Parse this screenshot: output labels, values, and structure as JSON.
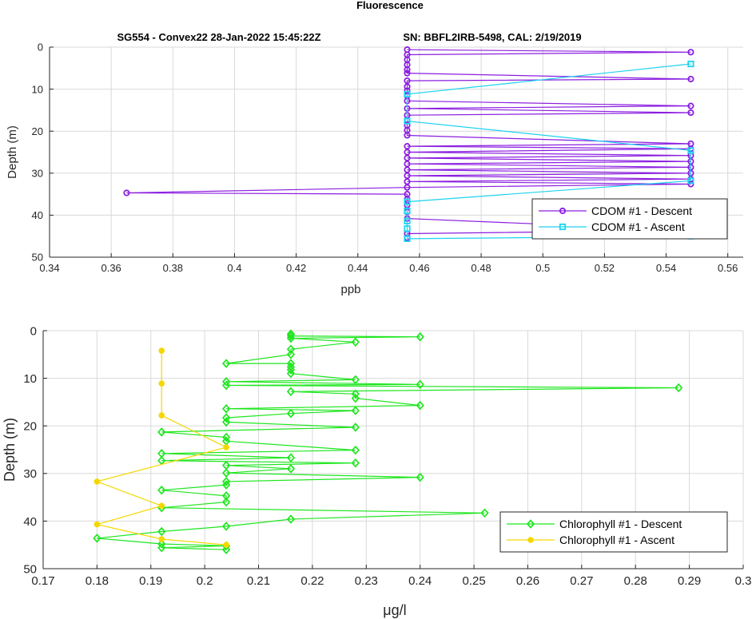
{
  "figure": {
    "title": "Fluorescence",
    "subtitle_left": "SG554 - Convex22 28-Jan-2022 15:45:22Z",
    "subtitle_right": "SN: BBFL2IRB-5498, CAL: 2/19/2019"
  },
  "colors": {
    "cdom_descent": "#8b1ee0",
    "cdom_ascent": "#1ed2f0",
    "chl_descent": "#1ee61e",
    "chl_ascent": "#f5d700",
    "axis": "#262626",
    "grid": "#d9d9d9"
  },
  "chart_data": [
    {
      "type": "line",
      "xlabel": "ppb",
      "ylabel": "Depth (m)",
      "xlim": [
        0.34,
        0.565
      ],
      "ylim": [
        0,
        50
      ],
      "y_reversed": true,
      "grid": true,
      "legend_position": "bottom-right",
      "xticks": [
        "0.34",
        "0.36",
        "0.38",
        "0.4",
        "0.42",
        "0.44",
        "0.46",
        "0.48",
        "0.5",
        "0.52",
        "0.54",
        "0.56"
      ],
      "yticks": [
        "0",
        "10",
        "20",
        "30",
        "40",
        "50"
      ],
      "series": [
        {
          "name": "CDOM #1 - Descent",
          "marker": "circle",
          "points": [
            [
              0.456,
              0.6
            ],
            [
              0.548,
              1.2
            ],
            [
              0.456,
              1.8
            ],
            [
              0.456,
              3.0
            ],
            [
              0.456,
              4.2
            ],
            [
              0.456,
              5.4
            ],
            [
              0.456,
              6.2
            ],
            [
              0.548,
              7.6
            ],
            [
              0.456,
              8.0
            ],
            [
              0.456,
              9.4
            ],
            [
              0.456,
              10.4
            ],
            [
              0.456,
              11.6
            ],
            [
              0.456,
              12.8
            ],
            [
              0.548,
              14.0
            ],
            [
              0.456,
              14.6
            ],
            [
              0.548,
              15.6
            ],
            [
              0.456,
              16.2
            ],
            [
              0.456,
              17.4
            ],
            [
              0.456,
              18.6
            ],
            [
              0.456,
              19.8
            ],
            [
              0.456,
              21.0
            ],
            [
              0.548,
              23.0
            ],
            [
              0.456,
              23.6
            ],
            [
              0.548,
              24.2
            ],
            [
              0.456,
              25.0
            ],
            [
              0.548,
              25.8
            ],
            [
              0.456,
              26.4
            ],
            [
              0.548,
              27.2
            ],
            [
              0.456,
              27.8
            ],
            [
              0.548,
              28.6
            ],
            [
              0.456,
              29.2
            ],
            [
              0.548,
              30.0
            ],
            [
              0.456,
              30.6
            ],
            [
              0.548,
              31.4
            ],
            [
              0.456,
              32.0
            ],
            [
              0.548,
              32.6
            ],
            [
              0.456,
              33.4
            ],
            [
              0.365,
              34.7
            ],
            [
              0.456,
              35.0
            ],
            [
              0.456,
              36.2
            ],
            [
              0.456,
              37.6
            ],
            [
              0.456,
              39.2
            ],
            [
              0.456,
              40.8
            ],
            [
              0.548,
              43.6
            ],
            [
              0.456,
              44.4
            ],
            [
              0.456,
              45.4
            ]
          ]
        },
        {
          "name": "CDOM #1 - Ascent",
          "marker": "square",
          "points": [
            [
              0.548,
              45.0
            ],
            [
              0.456,
              45.6
            ],
            [
              0.456,
              43.2
            ],
            [
              0.456,
              41.4
            ],
            [
              0.456,
              39.0
            ],
            [
              0.456,
              36.8
            ],
            [
              0.548,
              31.8
            ],
            [
              0.548,
              24.6
            ],
            [
              0.456,
              17.6
            ],
            [
              0.456,
              11.2
            ],
            [
              0.548,
              4.0
            ]
          ]
        }
      ]
    },
    {
      "type": "line",
      "xlabel": "μg/l",
      "ylabel": "Depth (m)",
      "xlim": [
        0.17,
        0.3
      ],
      "ylim": [
        0,
        50
      ],
      "y_reversed": true,
      "grid": true,
      "legend_position": "bottom-right",
      "xticks": [
        "0.17",
        "0.18",
        "0.19",
        "0.2",
        "0.21",
        "0.22",
        "0.23",
        "0.24",
        "0.25",
        "0.26",
        "0.27",
        "0.28",
        "0.29",
        "0.3"
      ],
      "yticks": [
        "0",
        "10",
        "20",
        "30",
        "40",
        "50"
      ],
      "series": [
        {
          "name": "Chlorophyll #1 - Descent",
          "marker": "diamond",
          "points": [
            [
              0.216,
              0.7
            ],
            [
              0.216,
              1.1
            ],
            [
              0.24,
              1.3
            ],
            [
              0.216,
              1.6
            ],
            [
              0.228,
              2.4
            ],
            [
              0.216,
              3.9
            ],
            [
              0.216,
              5.0
            ],
            [
              0.204,
              6.9
            ],
            [
              0.216,
              6.9
            ],
            [
              0.216,
              7.6
            ],
            [
              0.216,
              8.2
            ],
            [
              0.216,
              9.0
            ],
            [
              0.228,
              10.3
            ],
            [
              0.204,
              10.7
            ],
            [
              0.24,
              11.3
            ],
            [
              0.204,
              11.5
            ],
            [
              0.288,
              12.0
            ],
            [
              0.216,
              12.8
            ],
            [
              0.228,
              13.3
            ],
            [
              0.228,
              14.2
            ],
            [
              0.24,
              15.7
            ],
            [
              0.204,
              16.4
            ],
            [
              0.228,
              16.8
            ],
            [
              0.216,
              17.4
            ],
            [
              0.204,
              18.3
            ],
            [
              0.204,
              19.2
            ],
            [
              0.228,
              20.3
            ],
            [
              0.192,
              21.3
            ],
            [
              0.204,
              22.4
            ],
            [
              0.204,
              23.2
            ],
            [
              0.228,
              25.1
            ],
            [
              0.192,
              25.8
            ],
            [
              0.216,
              26.7
            ],
            [
              0.192,
              27.3
            ],
            [
              0.228,
              27.8
            ],
            [
              0.204,
              28.3
            ],
            [
              0.216,
              29.0
            ],
            [
              0.204,
              29.9
            ],
            [
              0.24,
              30.8
            ],
            [
              0.204,
              31.7
            ],
            [
              0.204,
              32.4
            ],
            [
              0.192,
              33.5
            ],
            [
              0.204,
              34.7
            ],
            [
              0.204,
              36.0
            ],
            [
              0.192,
              37.2
            ],
            [
              0.252,
              38.3
            ],
            [
              0.216,
              39.6
            ],
            [
              0.204,
              41.1
            ],
            [
              0.192,
              42.2
            ],
            [
              0.18,
              43.6
            ],
            [
              0.192,
              44.8
            ],
            [
              0.204,
              45.2
            ],
            [
              0.192,
              45.6
            ],
            [
              0.204,
              46.0
            ]
          ]
        },
        {
          "name": "Chlorophyll #1 - Ascent",
          "marker": "dot",
          "points": [
            [
              0.204,
              45.0
            ],
            [
              0.192,
              43.8
            ],
            [
              0.18,
              40.7
            ],
            [
              0.192,
              36.8
            ],
            [
              0.18,
              31.7
            ],
            [
              0.204,
              24.5
            ],
            [
              0.192,
              17.8
            ],
            [
              0.192,
              11.1
            ],
            [
              0.192,
              4.2
            ]
          ]
        }
      ]
    }
  ]
}
